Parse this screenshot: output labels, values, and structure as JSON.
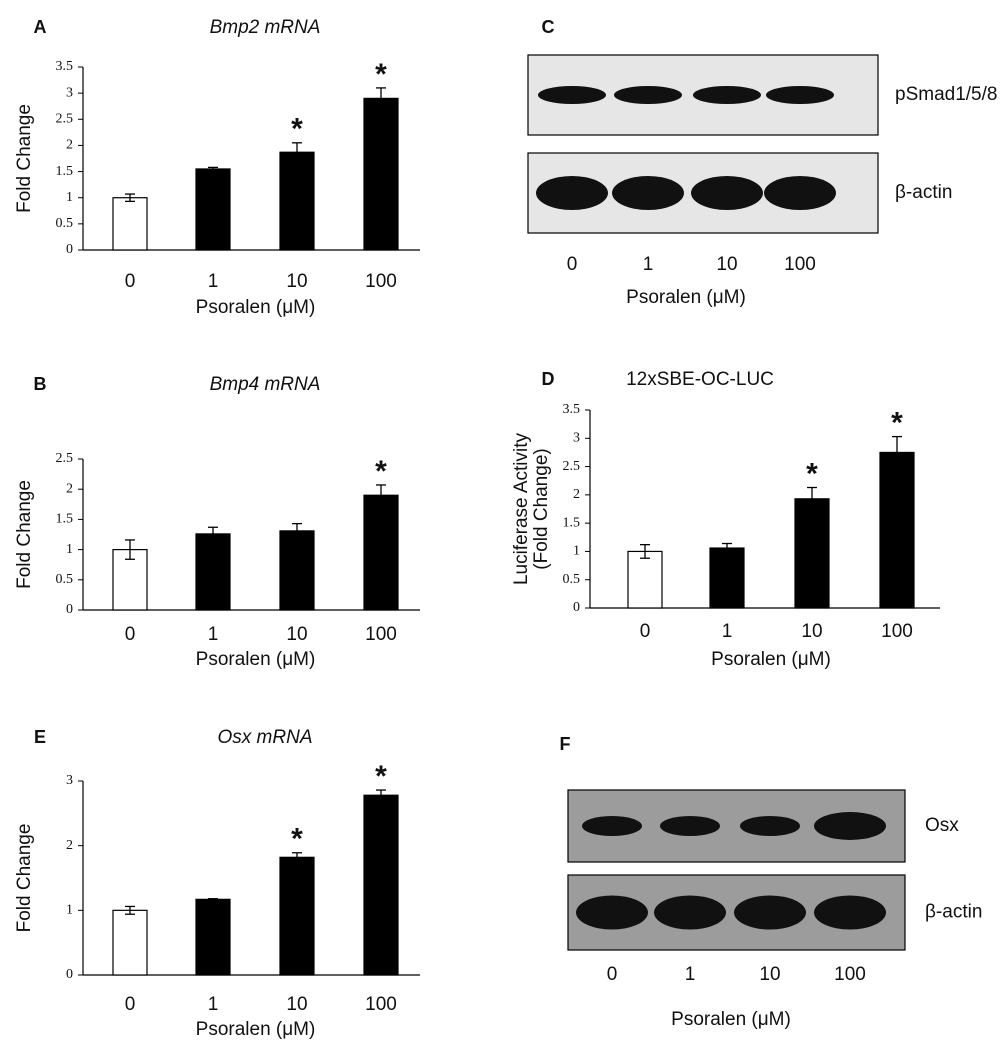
{
  "chart_data": [
    {
      "type": "bar",
      "panel": "A",
      "title": "Bmp2 mRNA",
      "italic_title": true,
      "ylabel": [
        "Fold Change"
      ],
      "xlabel": "Psoralen (μM)",
      "categories": [
        "0",
        "1",
        "10",
        "100"
      ],
      "values": [
        1.0,
        1.55,
        1.87,
        2.9
      ],
      "errors": [
        0.07,
        0.03,
        0.18,
        0.2
      ],
      "annotations": [
        null,
        null,
        "*",
        "*"
      ],
      "colors": [
        "#ffffff",
        "#000000",
        "#000000",
        "#000000"
      ],
      "ylim": [
        0,
        3.5
      ],
      "yticks": [
        0,
        0.5,
        1,
        1.5,
        2,
        2.5,
        3,
        3.5
      ]
    },
    {
      "type": "bar",
      "panel": "B",
      "title": "Bmp4 mRNA",
      "italic_title": true,
      "ylabel": [
        "Fold Change"
      ],
      "xlabel": "Psoralen (μM)",
      "categories": [
        "0",
        "1",
        "10",
        "100"
      ],
      "values": [
        1.0,
        1.26,
        1.31,
        1.9
      ],
      "errors": [
        0.16,
        0.11,
        0.12,
        0.17
      ],
      "annotations": [
        null,
        null,
        null,
        "*"
      ],
      "colors": [
        "#ffffff",
        "#000000",
        "#000000",
        "#000000"
      ],
      "ylim": [
        0,
        2.5
      ],
      "yticks": [
        0,
        0.5,
        1,
        1.5,
        2,
        2.5
      ]
    },
    {
      "type": "bar",
      "panel": "D",
      "title": "12xSBE-OC-LUC",
      "italic_title": false,
      "ylabel": [
        "Luciferase Activity",
        "(Fold Change)"
      ],
      "xlabel": "Psoralen (μM)",
      "categories": [
        "0",
        "1",
        "10",
        "100"
      ],
      "values": [
        1.0,
        1.06,
        1.93,
        2.75
      ],
      "errors": [
        0.12,
        0.08,
        0.2,
        0.28
      ],
      "annotations": [
        null,
        null,
        "*",
        "*"
      ],
      "colors": [
        "#ffffff",
        "#000000",
        "#000000",
        "#000000"
      ],
      "ylim": [
        0,
        3.5
      ],
      "yticks": [
        0,
        0.5,
        1,
        1.5,
        2,
        2.5,
        3,
        3.5
      ]
    },
    {
      "type": "bar",
      "panel": "E",
      "title": "Osx mRNA",
      "italic_title": true,
      "ylabel": [
        "Fold Change"
      ],
      "xlabel": "Psoralen (μM)",
      "categories": [
        "0",
        "1",
        "10",
        "100"
      ],
      "values": [
        1.0,
        1.17,
        1.82,
        2.78
      ],
      "errors": [
        0.06,
        0.01,
        0.07,
        0.08
      ],
      "annotations": [
        null,
        null,
        "*",
        "*"
      ],
      "colors": [
        "#ffffff",
        "#000000",
        "#000000",
        "#000000"
      ],
      "ylim": [
        0,
        3
      ],
      "yticks": [
        0,
        1,
        2,
        3
      ]
    }
  ],
  "blots": [
    {
      "panel": "C",
      "rows": [
        "pSmad1/5/8",
        "β-actin"
      ],
      "categories": [
        "0",
        "1",
        "10",
        "100"
      ],
      "xlabel": "Psoralen (μM)",
      "background": "#e6e6e6"
    },
    {
      "panel": "F",
      "rows": [
        "Osx",
        "β-actin"
      ],
      "categories": [
        "0",
        "1",
        "10",
        "100"
      ],
      "xlabel": "Psoralen (μM)",
      "background": "#9c9c9c"
    }
  ]
}
